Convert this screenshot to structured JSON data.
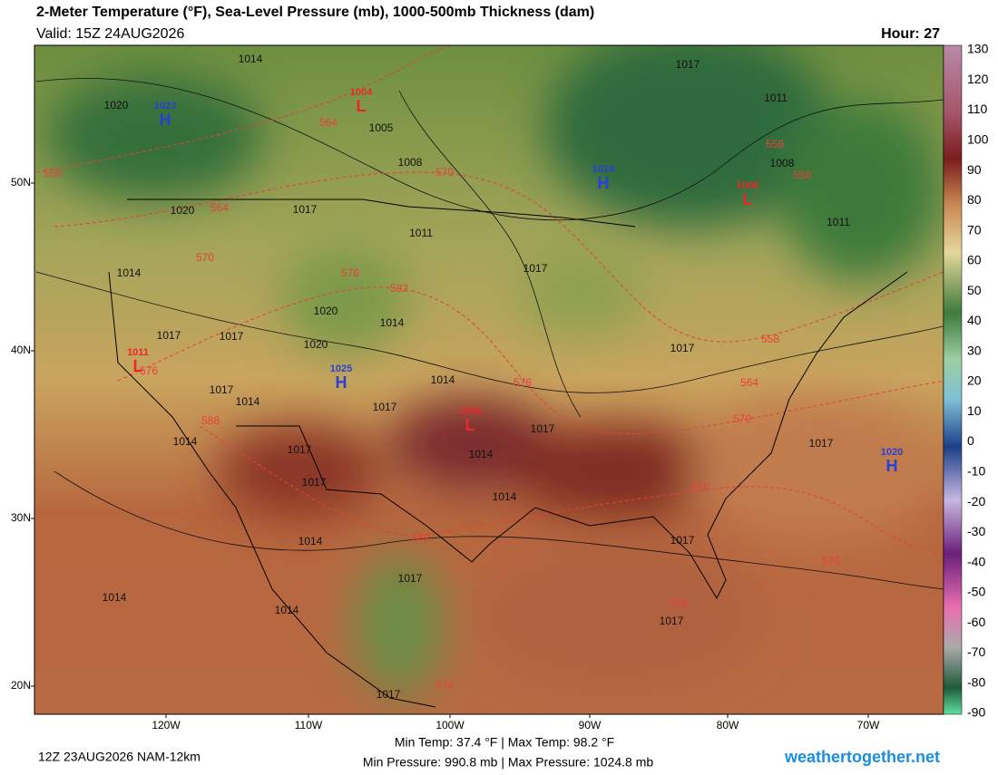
{
  "header": {
    "title": "2-Meter Temperature (°F), Sea-Level Pressure (mb), 1000-500mb Thickness (dam)",
    "valid": "Valid: 15Z 24AUG2026",
    "hour": "Hour: 27"
  },
  "colorbar": {
    "labels": [
      "130",
      "120",
      "110",
      "100",
      "90",
      "80",
      "70",
      "60",
      "50",
      "40",
      "30",
      "20",
      "10",
      "0",
      "-10",
      "-20",
      "-30",
      "-40",
      "-50",
      "-60",
      "-70",
      "-80",
      "-90"
    ]
  },
  "axes": {
    "latitudes": [
      "50N",
      "40N",
      "30N",
      "20N"
    ],
    "longitudes": [
      "120W",
      "110W",
      "100W",
      "90W",
      "80W",
      "70W"
    ]
  },
  "map": {
    "pressure_centers": [
      {
        "letter": "H",
        "value": "1023"
      },
      {
        "letter": "H",
        "value": "1019"
      },
      {
        "letter": "H",
        "value": "1025"
      },
      {
        "letter": "H",
        "value": "1020"
      },
      {
        "letter": "L",
        "value": "1004"
      },
      {
        "letter": "L",
        "value": "1006"
      },
      {
        "letter": "L",
        "value": "1011"
      },
      {
        "letter": "L",
        "value": "1006"
      }
    ],
    "isobar_labels": [
      "1014",
      "1020",
      "1005",
      "1008",
      "1017",
      "1011",
      "1008",
      "1011",
      "1020",
      "1017",
      "1011",
      "1017",
      "1014",
      "1020",
      "1014",
      "1017",
      "1017",
      "1020",
      "1017",
      "1014",
      "1017",
      "1014",
      "1017",
      "1017",
      "1014",
      "1017",
      "1014",
      "1017",
      "1014",
      "1017",
      "1014",
      "1017",
      "1017",
      "1014",
      "1014",
      "1017",
      "1017"
    ],
    "thickness_labels": [
      "564",
      "570",
      "558",
      "564",
      "570",
      "576",
      "582",
      "576",
      "576",
      "570",
      "564",
      "558",
      "558",
      "558",
      "576",
      "588",
      "582",
      "576",
      "576",
      "576"
    ]
  },
  "footer": {
    "stats_temp": "Min Temp:  37.4 °F | Max Temp:  98.2 °F",
    "stats_pressure": "Min Pressure: 990.8 mb | Max Pressure: 1024.8 mb",
    "run": "12Z 23AUG2026 NAM-12km",
    "brand": "weathertogether.net"
  }
}
